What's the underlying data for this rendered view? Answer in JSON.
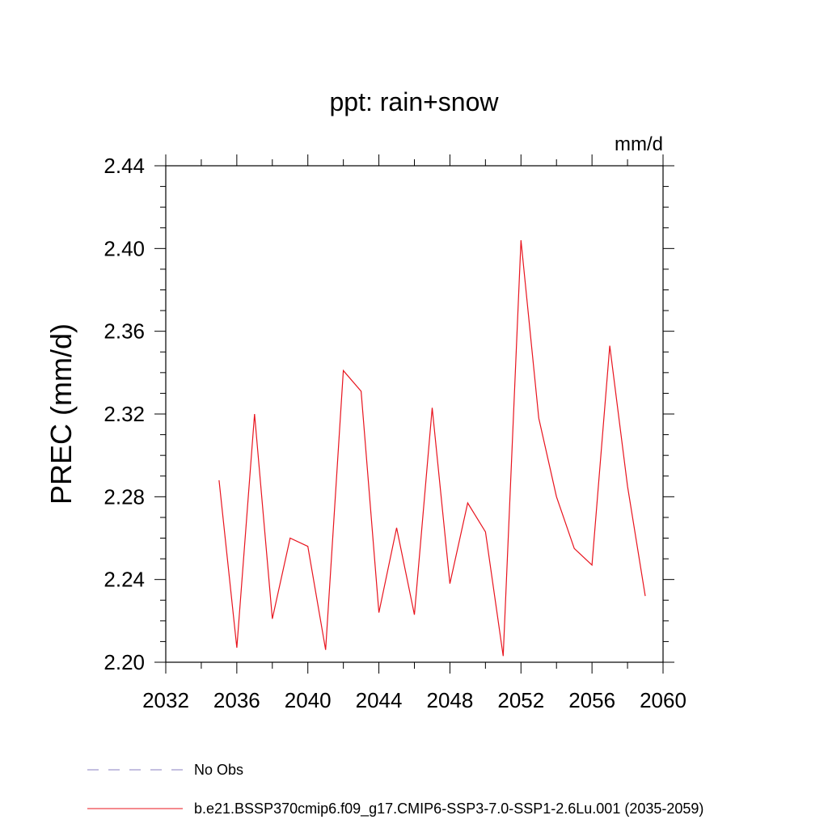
{
  "chart_data": {
    "type": "line",
    "title": "ppt: rain+snow",
    "units": "mm/d",
    "ylabel": "PREC  (mm/d)",
    "xlabel": "",
    "xlim": [
      2032,
      2060
    ],
    "ylim": [
      2.2,
      2.44
    ],
    "xticks": [
      2032,
      2036,
      2040,
      2044,
      2048,
      2052,
      2056,
      2060
    ],
    "yticks": [
      "2.20",
      "2.24",
      "2.28",
      "2.32",
      "2.36",
      "2.40",
      "2.44"
    ],
    "series": [
      {
        "name": "b.e21.BSSP370cmip6.f09_g17.CMIP6-SSP3-7.0-SSP1-2.6Lu.001 (2035-2059)",
        "color": "#e8141e",
        "style": "solid",
        "x": [
          2035,
          2036,
          2037,
          2038,
          2039,
          2040,
          2041,
          2042,
          2043,
          2044,
          2045,
          2046,
          2047,
          2048,
          2049,
          2050,
          2051,
          2052,
          2053,
          2054,
          2055,
          2056,
          2057,
          2058,
          2059
        ],
        "y": [
          2.288,
          2.207,
          2.32,
          2.221,
          2.26,
          2.256,
          2.206,
          2.341,
          2.331,
          2.224,
          2.265,
          2.223,
          2.323,
          2.238,
          2.277,
          2.263,
          2.203,
          2.404,
          2.318,
          2.28,
          2.255,
          2.247,
          2.353,
          2.285,
          2.232
        ]
      }
    ],
    "legend": [
      {
        "label": "No Obs",
        "color": "#8a7fc0",
        "style": "dashed"
      },
      {
        "label": "b.e21.BSSP370cmip6.f09_g17.CMIP6-SSP3-7.0-SSP1-2.6Lu.001 (2035-2059)",
        "color": "#e8141e",
        "style": "solid"
      }
    ],
    "legend_position": "bottom-left"
  }
}
